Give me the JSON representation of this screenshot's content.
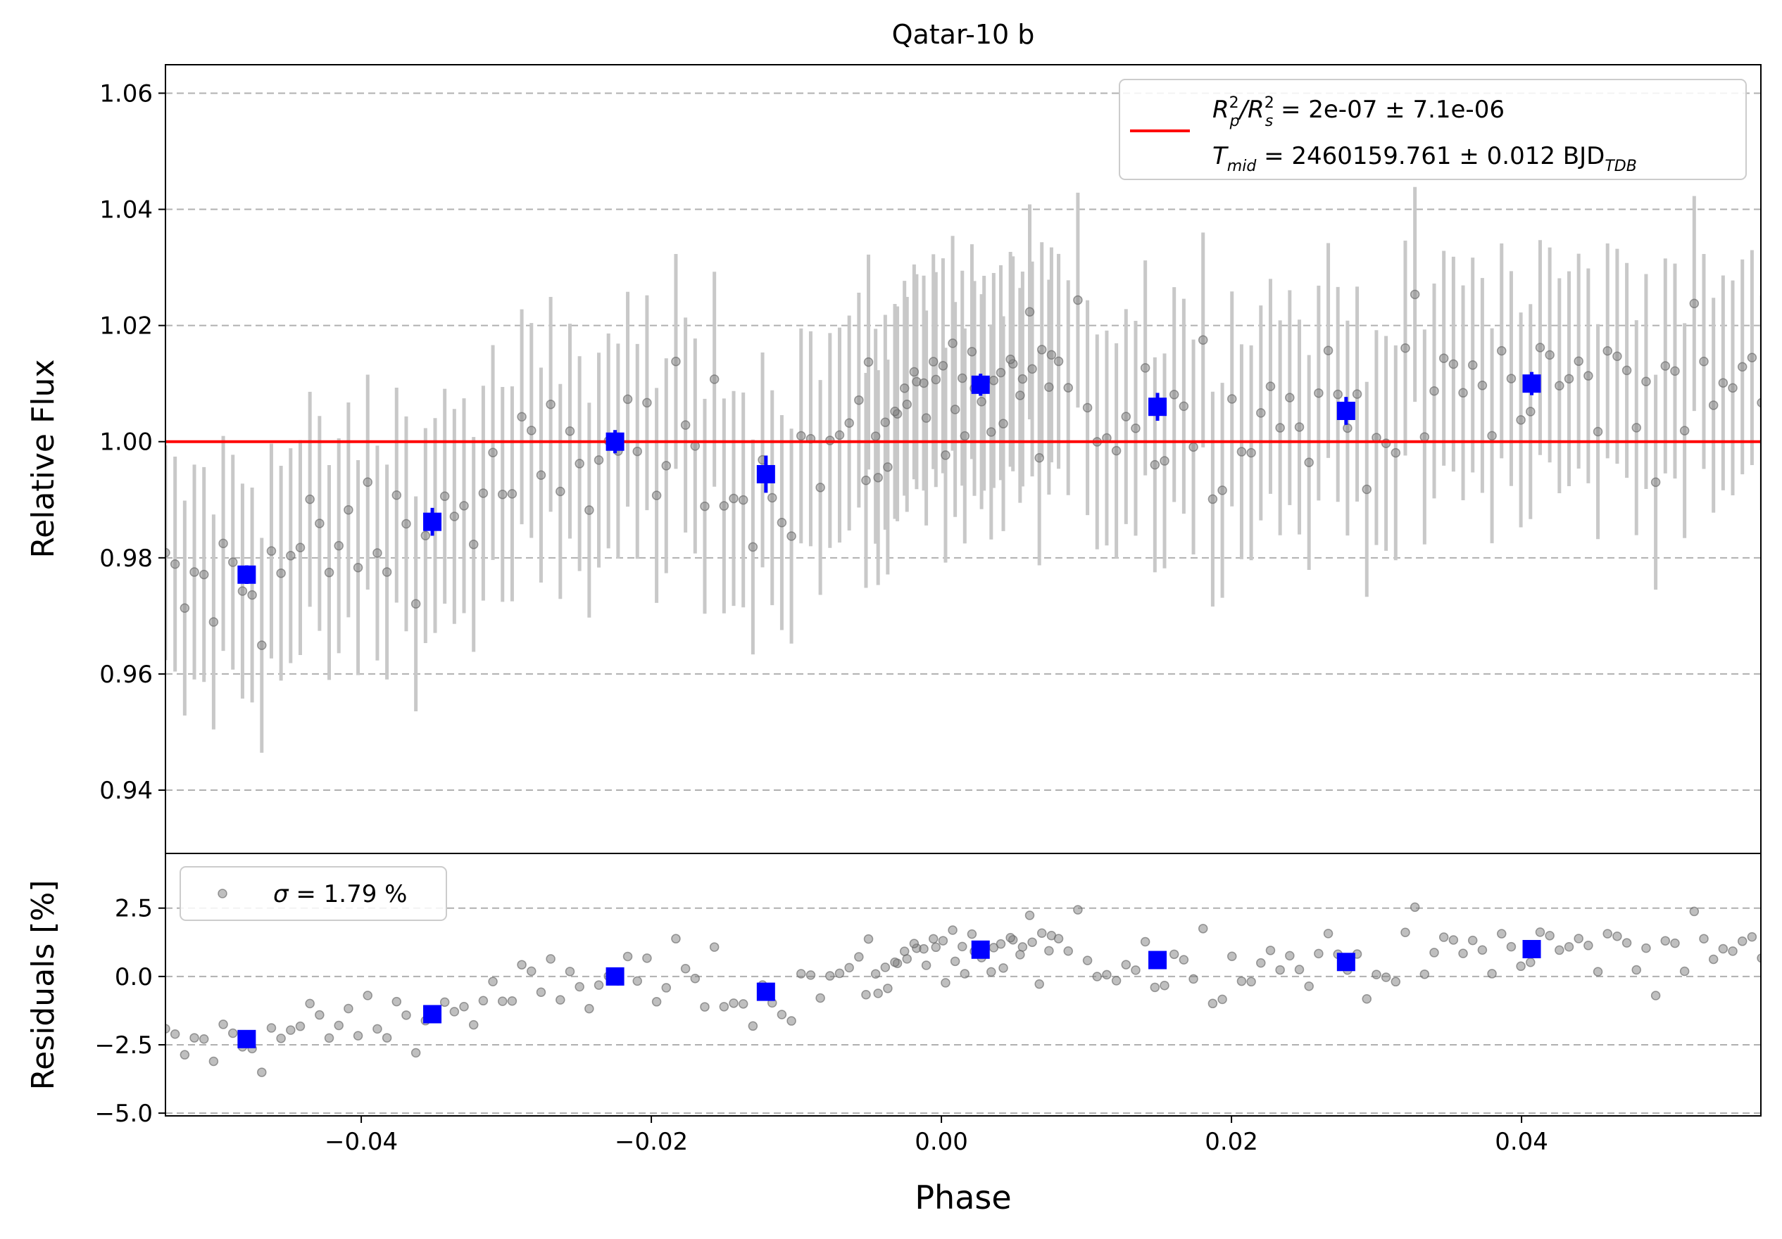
{
  "title": "Qatar-10 b",
  "chart_data": [
    {
      "type": "scatter",
      "title": "Qatar-10 b",
      "xlabel": "",
      "ylabel": "Relative Flux",
      "xlim": [
        -0.0535,
        0.0565
      ],
      "ylim": [
        0.9291,
        1.0649
      ],
      "yticks": [
        0.94,
        0.96,
        0.98,
        1.0,
        1.02,
        1.04,
        1.06
      ],
      "ytick_labels": [
        "0.94",
        "0.96",
        "0.98",
        "1.00",
        "1.02",
        "1.04",
        "1.06"
      ],
      "grid": "horizontal dashed",
      "legend_position": "top-right",
      "legend": {
        "line1_prefix": "R",
        "line1_p_sup": "2",
        "line1_p_sub": "p",
        "line1_slash": "/R",
        "line1_s_sup": "2",
        "line1_s_sub": "s",
        "line1_value": " = 2e-07 ± 7.1e-06",
        "line2_prefix": "T",
        "line2_sub": "mid",
        "line2_value": " = 2460159.761 ± 0.012 BJD",
        "line2_unit_sub": "TDB"
      },
      "model": {
        "name": "transit model",
        "y": 1.0,
        "color": "#ff0000"
      },
      "raw_color": "#808080",
      "errbar_color": "#c8c8c8",
      "binned_color": "#0000ff",
      "binned": {
        "x": [
          -0.0479,
          -0.0351,
          -0.0225,
          -0.0121,
          0.0027,
          0.0149,
          0.0279,
          0.0407
        ],
        "y": [
          0.9771,
          0.9862,
          1.0,
          0.9944,
          1.0098,
          1.006,
          1.0053,
          1.01
        ],
        "err": [
          0.0016,
          0.0024,
          0.002,
          0.0032,
          0.0019,
          0.0024,
          0.0024,
          0.002
        ]
      },
      "raw": {
        "x_start": -0.0535,
        "x_step": 0.000664,
        "n_first_block": 93,
        "gap_x": -0.0052,
        "n_second_block": 114,
        "err": 0.0185
      }
    },
    {
      "type": "scatter",
      "xlabel": "Phase",
      "ylabel": "Residuals [%]",
      "xlim": [
        -0.0535,
        0.0565
      ],
      "ylim": [
        -5.1,
        4.5
      ],
      "yticks": [
        -5.0,
        -2.5,
        0.0,
        2.5
      ],
      "ytick_labels": [
        "−5.0",
        "−2.5",
        "0.0",
        "2.5"
      ],
      "xticks": [
        -0.04,
        -0.02,
        0.0,
        0.02,
        0.04
      ],
      "xtick_labels": [
        "−0.04",
        "−0.02",
        "0.00",
        "0.02",
        "0.04"
      ],
      "grid": "horizontal dashed",
      "legend_position": "top-left",
      "legend": {
        "sigma_symbol": "σ",
        "sigma_text": " = 1.79 %"
      },
      "binned_residuals": [
        -2.29,
        -1.38,
        0.0,
        -0.56,
        0.98,
        0.6,
        0.53,
        1.0
      ]
    }
  ]
}
